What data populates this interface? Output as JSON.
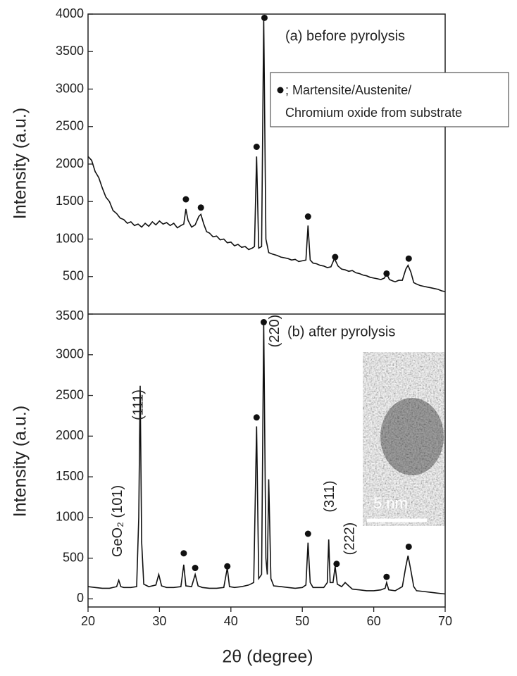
{
  "chart_data": [
    {
      "type": "line",
      "ylabel": "Intensity (a.u.)",
      "annotation": "(a) before pyrolysis",
      "legend_text": [
        "; Martensite/Austenite/",
        "Chromium oxide from substrate"
      ],
      "xlim": [
        20,
        70
      ],
      "ylim": [
        0,
        4000
      ],
      "yticks": [
        500,
        1000,
        1500,
        2000,
        2500,
        3000,
        3500,
        4000
      ],
      "x": [
        20,
        20.5,
        21,
        21.5,
        22,
        22.5,
        23,
        23.5,
        24,
        24.5,
        25,
        25.5,
        26,
        26.5,
        27,
        27.5,
        28,
        28.5,
        29,
        29.5,
        30,
        30.5,
        31,
        31.5,
        32,
        32.5,
        33,
        33.4,
        33.7,
        34,
        34.5,
        35,
        35.5,
        35.8,
        36.2,
        36.6,
        37,
        37.5,
        38,
        38.5,
        39,
        39.5,
        40,
        40.5,
        41,
        41.5,
        42,
        42.5,
        43,
        43.3,
        43.6,
        43.9,
        44.3,
        44.6,
        44.9,
        45.3,
        45.8,
        46.5,
        47,
        47.5,
        48,
        48.5,
        49,
        49.5,
        50,
        50.5,
        50.8,
        51.1,
        51.5,
        52,
        52.5,
        53,
        53.5,
        54,
        54.5,
        55,
        55.5,
        56,
        56.5,
        57,
        57.5,
        58,
        58.5,
        59,
        59.5,
        60,
        60.5,
        61,
        61.5,
        61.8,
        62.2,
        62.7,
        63,
        63.5,
        64,
        64.5,
        64.8,
        65.2,
        65.6,
        66,
        66.5,
        67,
        67.5,
        68,
        68.5,
        69,
        69.5,
        70
      ],
      "series": [
        {
          "color": "#111111",
          "values": [
            2100,
            2050,
            1900,
            1820,
            1680,
            1560,
            1500,
            1380,
            1340,
            1280,
            1260,
            1210,
            1230,
            1180,
            1200,
            1160,
            1210,
            1170,
            1230,
            1190,
            1240,
            1200,
            1220,
            1180,
            1210,
            1150,
            1180,
            1200,
            1400,
            1250,
            1160,
            1190,
            1300,
            1330,
            1200,
            1100,
            1080,
            1030,
            1040,
            990,
            1000,
            950,
            960,
            910,
            930,
            890,
            900,
            860,
            880,
            900,
            2100,
            880,
            900,
            3950,
            1000,
            820,
            800,
            780,
            760,
            750,
            740,
            720,
            730,
            700,
            710,
            720,
            1180,
            720,
            680,
            670,
            650,
            640,
            620,
            630,
            740,
            640,
            600,
            590,
            570,
            580,
            550,
            540,
            520,
            510,
            490,
            480,
            470,
            460,
            480,
            540,
            460,
            440,
            430,
            450,
            450,
            600,
            650,
            560,
            420,
            400,
            380,
            370,
            360,
            350,
            340,
            330,
            310,
            300
          ]
        }
      ],
      "markers": {
        "x": [
          33.7,
          35.8,
          43.6,
          44.7,
          50.8,
          54.6,
          61.8,
          64.9
        ],
        "y": [
          1530,
          1420,
          2230,
          3950,
          1300,
          760,
          540,
          740
        ]
      }
    },
    {
      "type": "line",
      "ylabel": "Intensity (a.u.)",
      "xlabel": "2θ (degree)",
      "annotation": "(b) after pyrolysis",
      "peak_labels": [
        "GeO₂ (101)",
        "(111)",
        "(220)",
        "(311)",
        "(222)"
      ],
      "inset_label": "5 nm",
      "xlim": [
        20,
        70
      ],
      "xticks": [
        20,
        30,
        40,
        50,
        60,
        70
      ],
      "ylim": [
        -100,
        3500
      ],
      "yticks": [
        0,
        500,
        1000,
        1500,
        2000,
        2500,
        3000,
        3500
      ],
      "x": [
        20,
        21,
        22,
        23,
        24,
        24.3,
        24.6,
        25,
        26,
        26.8,
        27.1,
        27.3,
        27.5,
        27.8,
        28.5,
        29.5,
        29.9,
        30.3,
        31,
        32,
        33,
        33.4,
        33.7,
        34.5,
        35,
        35.4,
        36,
        37,
        38,
        39,
        39.5,
        39.8,
        40.5,
        41.5,
        42.5,
        43.2,
        43.6,
        43.9,
        44.3,
        44.6,
        44.9,
        45.1,
        45.3,
        45.6,
        46,
        47,
        48,
        49,
        50,
        50.5,
        50.8,
        51.1,
        51.5,
        52,
        53,
        53.5,
        53.7,
        53.9,
        54.3,
        54.6,
        54.9,
        55.5,
        56,
        56.5,
        57,
        58,
        59,
        60,
        61,
        61.6,
        61.8,
        62.1,
        63,
        64,
        64.5,
        64.8,
        65.2,
        65.6,
        66,
        67,
        68,
        69,
        70
      ],
      "series": [
        {
          "color": "#111111",
          "values": [
            150,
            140,
            130,
            130,
            150,
            230,
            150,
            140,
            140,
            150,
            1000,
            2620,
            700,
            180,
            150,
            170,
            300,
            160,
            140,
            140,
            150,
            420,
            160,
            150,
            300,
            160,
            140,
            130,
            130,
            140,
            380,
            150,
            140,
            150,
            170,
            200,
            2120,
            250,
            300,
            3400,
            500,
            300,
            1470,
            250,
            160,
            150,
            140,
            130,
            140,
            170,
            690,
            200,
            140,
            140,
            140,
            200,
            730,
            200,
            200,
            400,
            180,
            150,
            200,
            160,
            120,
            110,
            100,
            100,
            110,
            130,
            200,
            110,
            100,
            150,
            400,
            530,
            350,
            150,
            100,
            90,
            80,
            70,
            60
          ]
        }
      ],
      "markers": {
        "x": [
          33.4,
          35.0,
          39.5,
          43.6,
          44.6,
          50.8,
          54.8,
          61.8,
          64.9
        ],
        "y": [
          560,
          380,
          400,
          2230,
          3400,
          800,
          430,
          270,
          640
        ]
      }
    }
  ]
}
